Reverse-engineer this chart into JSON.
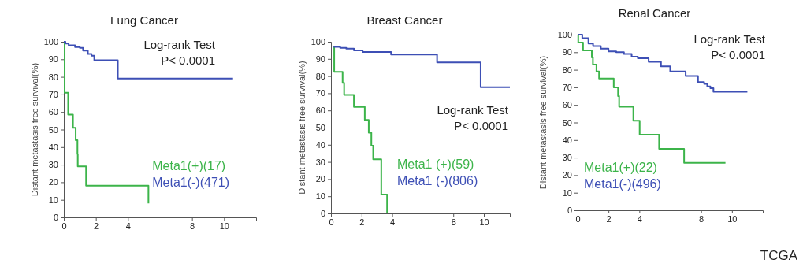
{
  "chart_data": [
    {
      "type": "step",
      "title": "Lung Cancer",
      "ylabel": "Distant metastasis free survival(%)",
      "xlim": [
        0,
        12
      ],
      "xticks": [
        0,
        2,
        4,
        8,
        10
      ],
      "ylim": [
        0,
        100
      ],
      "yticks": [
        0,
        10,
        20,
        30,
        40,
        50,
        60,
        70,
        80,
        90,
        100
      ],
      "legend": "bottom right",
      "marker": "none",
      "line_style": "solid",
      "grid": false,
      "annotations": [
        "Log-rank Test",
        "P< 0.0001"
      ],
      "series": [
        {
          "name": "Meta1(+)(17)",
          "color": "#3cb44a",
          "x": [
            0,
            0.05,
            0.27,
            0.57,
            0.74,
            0.85,
            0.87,
            1.39,
            5.28,
            5.28
          ],
          "values": [
            100,
            71,
            58.5,
            51,
            44,
            36,
            29,
            18,
            18,
            8
          ]
        },
        {
          "name": "Meta1(-)(471)",
          "color": "#3d4fb5",
          "x": [
            0,
            0.1,
            0.3,
            0.7,
            1.0,
            1.2,
            1.5,
            1.73,
            1.9,
            3.37,
            10.56
          ],
          "values": [
            100,
            99,
            98,
            97,
            96.5,
            95,
            93,
            92,
            89.5,
            79,
            79
          ]
        }
      ]
    },
    {
      "type": "step",
      "title": "Breast Cancer",
      "ylabel": "Distant metastasis free survival(%)",
      "xlim": [
        0,
        11.7
      ],
      "xticks": [
        0,
        2,
        4,
        8,
        10
      ],
      "ylim": [
        0,
        100
      ],
      "yticks": [
        0,
        10,
        20,
        30,
        40,
        50,
        60,
        70,
        80,
        90,
        100
      ],
      "legend": "bottom",
      "marker": "none",
      "line_style": "solid",
      "grid": false,
      "annotations": [
        "Log-rank Test",
        "P< 0.0001"
      ],
      "series": [
        {
          "name": "Meta1 (+)(59)",
          "color": "#3cb44a",
          "x": [
            0.17,
            0.21,
            0.76,
            0.86,
            1.5,
            2.21,
            2.47,
            2.64,
            2.76,
            3.29,
            3.67
          ],
          "values": [
            97,
            82.5,
            76,
            69,
            62,
            54.5,
            47,
            39.5,
            31.5,
            11,
            0
          ]
        },
        {
          "name": "Meta1 (-)(806)",
          "color": "#3d4fb5",
          "x": [
            0.17,
            0.6,
            1.0,
            1.5,
            2.07,
            3.93,
            6.94,
            9.79,
            11.7
          ],
          "values": [
            97,
            96.5,
            96,
            95,
            94,
            92.5,
            88,
            73.5,
            73.5
          ]
        }
      ]
    },
    {
      "type": "step",
      "title": "Renal Cancer",
      "ylabel": "Distant metastasis free survival(%)",
      "xlim": [
        0,
        12
      ],
      "xticks": [
        0,
        2,
        4,
        8,
        10
      ],
      "ylim": [
        0,
        100
      ],
      "yticks": [
        0,
        10,
        20,
        30,
        40,
        50,
        60,
        70,
        80,
        90,
        100
      ],
      "legend": "bottom left",
      "marker": "none",
      "line_style": "solid",
      "grid": false,
      "annotations": [
        "Log-rank Test",
        "P< 0.0001",
        "TCGA"
      ],
      "series": [
        {
          "name": "Meta1(+)(22)",
          "color": "#3cb44a",
          "x": [
            0,
            0.04,
            0.35,
            0.92,
            0.99,
            1.22,
            1.39,
            2.34,
            2.62,
            2.69,
            3.61,
            4.02,
            5.28,
            6.9,
            9.58
          ],
          "values": [
            100,
            95.5,
            91,
            87,
            83,
            79,
            75,
            70,
            65,
            59,
            51,
            43,
            35,
            27,
            27
          ]
        },
        {
          "name": "Meta1(-)(496)",
          "color": "#3d4fb5",
          "x": [
            0,
            0.3,
            0.7,
            1.0,
            1.5,
            2.0,
            2.5,
            3.0,
            3.5,
            3.9,
            4.6,
            5.4,
            6.0,
            7.0,
            7.8,
            8.2,
            8.4,
            8.6,
            8.8,
            11.0
          ],
          "values": [
            100,
            98,
            95,
            93.5,
            92,
            90.5,
            90,
            89,
            87.5,
            86.5,
            84.5,
            82,
            79,
            76.5,
            73,
            72,
            70.5,
            69.5,
            67.5,
            67.5
          ]
        }
      ]
    }
  ]
}
